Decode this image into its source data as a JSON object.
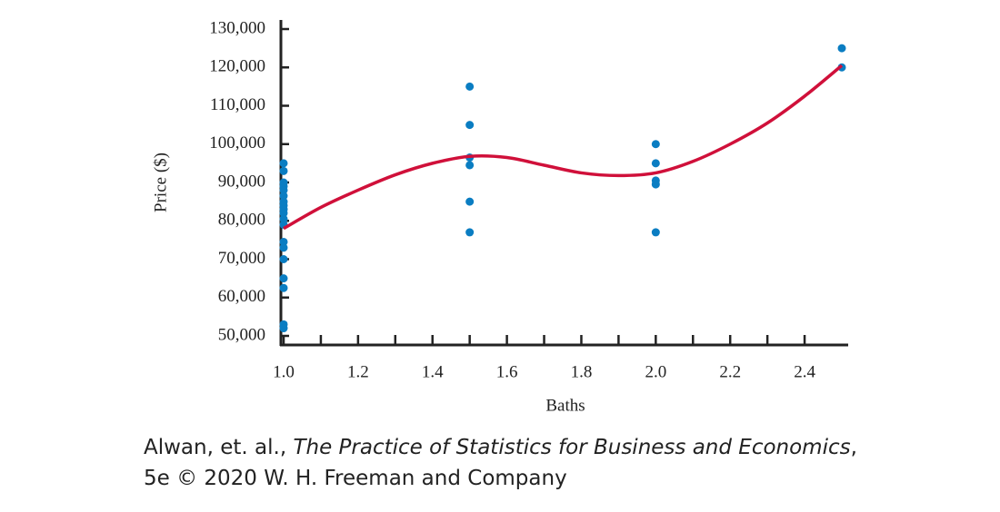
{
  "chart_data": {
    "type": "scatter",
    "x_label": "Baths",
    "y_label": "Price ($)",
    "xlim": [
      1.0,
      2.5
    ],
    "ylim": [
      50000,
      130000
    ],
    "xticks": [
      {
        "value": 1.0,
        "label": "1.0"
      },
      {
        "value": 1.2,
        "label": "1.2"
      },
      {
        "value": 1.4,
        "label": "1.4"
      },
      {
        "value": 1.6,
        "label": "1.6"
      },
      {
        "value": 1.8,
        "label": "1.8"
      },
      {
        "value": 2.0,
        "label": "2.0"
      },
      {
        "value": 2.2,
        "label": "2.2"
      },
      {
        "value": 2.4,
        "label": "2.4"
      }
    ],
    "xminorticks": [
      1.1,
      1.3,
      1.5,
      1.7,
      1.9,
      2.1,
      2.3
    ],
    "yticks": [
      {
        "value": 50000,
        "label": "50,000"
      },
      {
        "value": 60000,
        "label": "60,000"
      },
      {
        "value": 70000,
        "label": "70,000"
      },
      {
        "value": 80000,
        "label": "80,000"
      },
      {
        "value": 90000,
        "label": "90,000"
      },
      {
        "value": 100000,
        "label": "100,000"
      },
      {
        "value": 110000,
        "label": "110,000"
      },
      {
        "value": 120000,
        "label": "120,000"
      },
      {
        "value": 130000,
        "label": "130,000"
      }
    ],
    "series": [
      {
        "type": "scatter",
        "color": "#0a7dc2",
        "x": [
          1.0,
          1.0,
          1.0,
          1.0,
          1.0,
          1.0,
          1.0,
          1.0,
          1.0,
          1.0,
          1.0,
          1.0,
          1.0,
          1.0,
          1.0,
          1.0,
          1.0,
          1.0,
          1.0,
          1.5,
          1.5,
          1.5,
          1.5,
          1.5,
          1.5,
          2.0,
          2.0,
          2.0,
          2.0,
          2.0,
          2.5,
          2.5
        ],
        "values": [
          95000,
          93000,
          90000,
          89000,
          88000,
          86500,
          85000,
          84000,
          83000,
          82000,
          80500,
          79000,
          74500,
          73000,
          70000,
          65000,
          62500,
          53000,
          52000,
          115000,
          105000,
          96500,
          94500,
          85000,
          77000,
          100000,
          95000,
          90500,
          89500,
          77000,
          125000,
          120000
        ]
      },
      {
        "type": "line",
        "color": "#d0103a",
        "x": [
          1.0,
          1.1,
          1.2,
          1.3,
          1.4,
          1.5,
          1.6,
          1.7,
          1.8,
          1.9,
          2.0,
          2.1,
          2.2,
          2.3,
          2.4,
          2.5
        ],
        "values": [
          78000,
          83500,
          88000,
          92000,
          95000,
          96800,
          96500,
          94500,
          92500,
          91800,
          92500,
          95500,
          100000,
          105500,
          112500,
          120500
        ]
      }
    ]
  },
  "caption": {
    "authors": "Alwan, et. al., ",
    "title": "The Practice of Statistics for Business and Economics",
    "rest": ",",
    "line2": "5e © 2020 W. H. Freeman and Company"
  }
}
